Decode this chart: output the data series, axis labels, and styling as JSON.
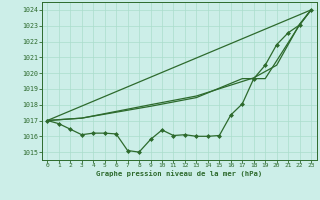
{
  "bg_color": "#cceee8",
  "grid_color": "#aaddcc",
  "line_color": "#2d6a2d",
  "title": "Graphe pression niveau de la mer (hPa)",
  "xlim": [
    -0.5,
    23.5
  ],
  "ylim": [
    1014.5,
    1024.5
  ],
  "yticks": [
    1015,
    1016,
    1017,
    1018,
    1019,
    1020,
    1021,
    1022,
    1023,
    1024
  ],
  "xticks": [
    0,
    1,
    2,
    3,
    4,
    5,
    6,
    7,
    8,
    9,
    10,
    11,
    12,
    13,
    14,
    15,
    16,
    17,
    18,
    19,
    20,
    21,
    22,
    23
  ],
  "main_x": [
    0,
    1,
    2,
    3,
    4,
    5,
    6,
    7,
    8,
    9,
    10,
    11,
    12,
    13,
    14,
    15,
    16,
    17,
    18,
    19,
    20,
    21,
    22,
    23
  ],
  "main_y": [
    1017.0,
    1016.8,
    1016.45,
    1016.1,
    1016.2,
    1016.2,
    1016.15,
    1015.1,
    1015.0,
    1015.8,
    1016.4,
    1016.05,
    1016.1,
    1016.0,
    1016.0,
    1016.05,
    1017.35,
    1018.05,
    1019.65,
    1020.5,
    1021.8,
    1022.55,
    1023.05,
    1024.0
  ],
  "line1_x": [
    0,
    23
  ],
  "line1_y": [
    1017.0,
    1024.0
  ],
  "line2_x": [
    0,
    3,
    9,
    13,
    17,
    19,
    22,
    23
  ],
  "line2_y": [
    1017.0,
    1017.15,
    1017.9,
    1018.45,
    1019.65,
    1019.65,
    1023.05,
    1024.0
  ],
  "line3_x": [
    0,
    3,
    9,
    13,
    18,
    20,
    22,
    23
  ],
  "line3_y": [
    1017.0,
    1017.15,
    1018.0,
    1018.55,
    1019.7,
    1020.5,
    1023.1,
    1024.0
  ]
}
